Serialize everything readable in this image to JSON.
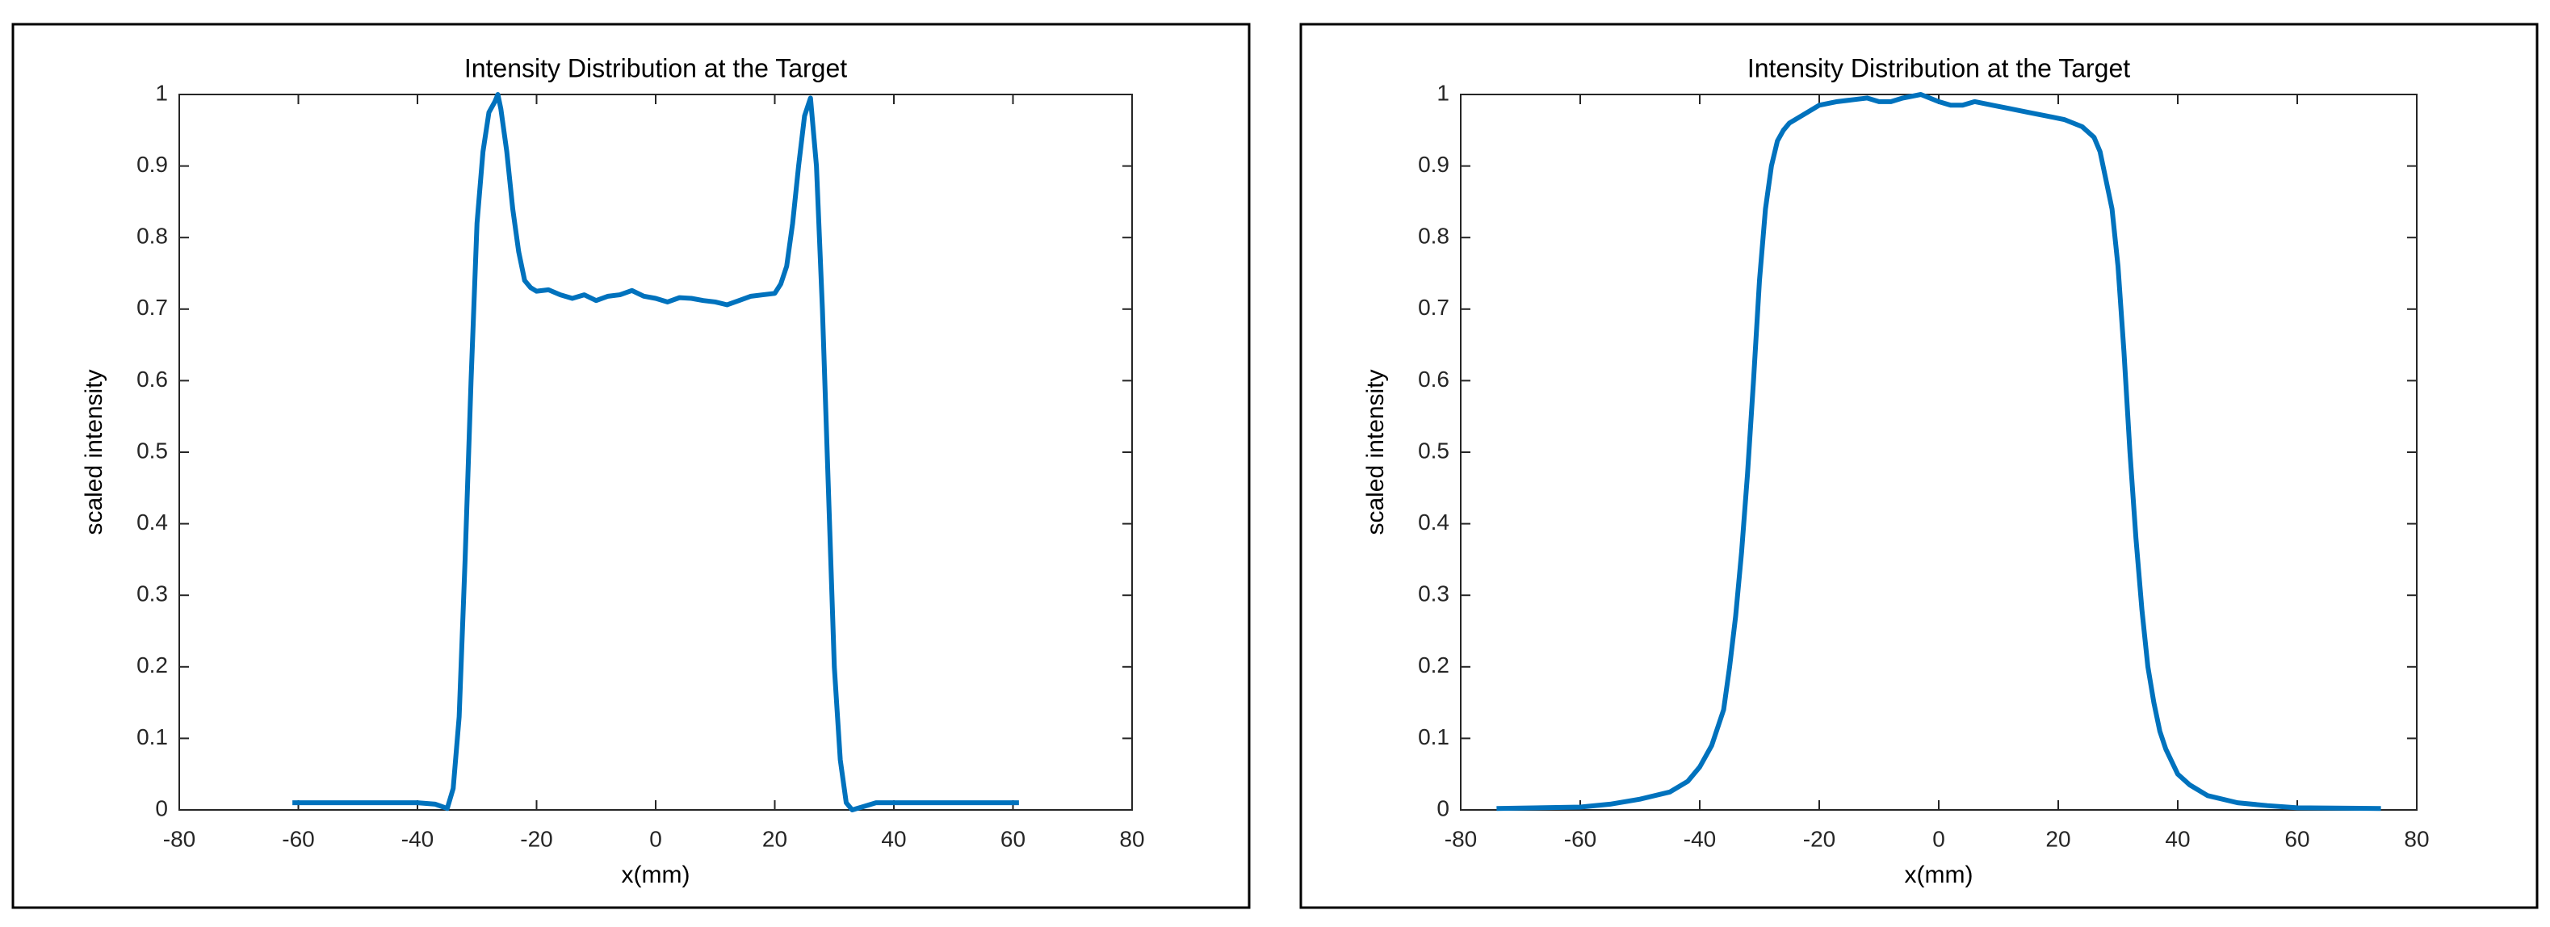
{
  "chart_data": [
    {
      "type": "line",
      "title": "Intensity Distribution at the Target",
      "xlabel": "x(mm)",
      "ylabel": "scaled intensity",
      "color": "#0072bd",
      "x": [
        -61,
        -50,
        -40,
        -37,
        -35,
        -34,
        -33,
        -32,
        -31,
        -30,
        -29,
        -28,
        -27,
        -26.5,
        -26,
        -25,
        -24,
        -23,
        -22,
        -21,
        -20,
        -18,
        -16,
        -14,
        -12,
        -10,
        -8,
        -6,
        -4,
        -2,
        0,
        2,
        4,
        6,
        8,
        10,
        12,
        14,
        16,
        18,
        20,
        21,
        22,
        23,
        24,
        25,
        26,
        27,
        28,
        29,
        30,
        31,
        32,
        33,
        35,
        37,
        40,
        50,
        61
      ],
      "values": [
        0.01,
        0.01,
        0.01,
        0.008,
        0.002,
        0.03,
        0.13,
        0.35,
        0.6,
        0.82,
        0.92,
        0.975,
        0.99,
        1.0,
        0.98,
        0.92,
        0.84,
        0.78,
        0.74,
        0.73,
        0.725,
        0.727,
        0.72,
        0.715,
        0.72,
        0.712,
        0.718,
        0.72,
        0.726,
        0.718,
        0.715,
        0.71,
        0.716,
        0.715,
        0.712,
        0.71,
        0.706,
        0.712,
        0.718,
        0.72,
        0.722,
        0.735,
        0.76,
        0.82,
        0.9,
        0.97,
        0.995,
        0.9,
        0.7,
        0.45,
        0.2,
        0.07,
        0.01,
        0.0,
        0.005,
        0.01,
        0.01,
        0.01,
        0.01
      ],
      "xlim": [
        -80,
        80
      ],
      "ylim": [
        0,
        1
      ],
      "xticks": [
        -80,
        -60,
        -40,
        -20,
        0,
        20,
        40,
        60,
        80
      ],
      "yticks": [
        0,
        0.1,
        0.2,
        0.3,
        0.4,
        0.5,
        0.6,
        0.7,
        0.8,
        0.9,
        1
      ]
    },
    {
      "type": "line",
      "title": "Intensity Distribution at the Target",
      "xlabel": "x(mm)",
      "ylabel": "scaled intensity",
      "color": "#0072bd",
      "x": [
        -74,
        -60,
        -55,
        -50,
        -45,
        -42,
        -40,
        -38,
        -36,
        -35,
        -34,
        -33,
        -32,
        -31,
        -30,
        -29,
        -28,
        -27,
        -26,
        -25,
        -22,
        -20,
        -17,
        -14,
        -12,
        -10,
        -8,
        -6,
        -3,
        0,
        2,
        4,
        6,
        9,
        12,
        15,
        18,
        21,
        24,
        26,
        27,
        28,
        29,
        30,
        31,
        32,
        33,
        34,
        35,
        36,
        37,
        38,
        40,
        42,
        45,
        50,
        55,
        60,
        74
      ],
      "values": [
        0.002,
        0.004,
        0.008,
        0.015,
        0.025,
        0.04,
        0.06,
        0.09,
        0.14,
        0.2,
        0.27,
        0.36,
        0.47,
        0.6,
        0.74,
        0.84,
        0.9,
        0.935,
        0.95,
        0.96,
        0.975,
        0.985,
        0.99,
        0.993,
        0.995,
        0.99,
        0.99,
        0.995,
        1.0,
        0.99,
        0.985,
        0.985,
        0.99,
        0.985,
        0.98,
        0.975,
        0.97,
        0.965,
        0.955,
        0.94,
        0.92,
        0.88,
        0.84,
        0.76,
        0.64,
        0.5,
        0.38,
        0.28,
        0.2,
        0.15,
        0.11,
        0.085,
        0.05,
        0.035,
        0.02,
        0.01,
        0.006,
        0.003,
        0.002
      ],
      "xlim": [
        -80,
        80
      ],
      "ylim": [
        0,
        1
      ],
      "xticks": [
        -80,
        -60,
        -40,
        -20,
        0,
        20,
        40,
        60,
        80
      ],
      "yticks": [
        0,
        0.1,
        0.2,
        0.3,
        0.4,
        0.5,
        0.6,
        0.7,
        0.8,
        0.9,
        1
      ]
    }
  ]
}
